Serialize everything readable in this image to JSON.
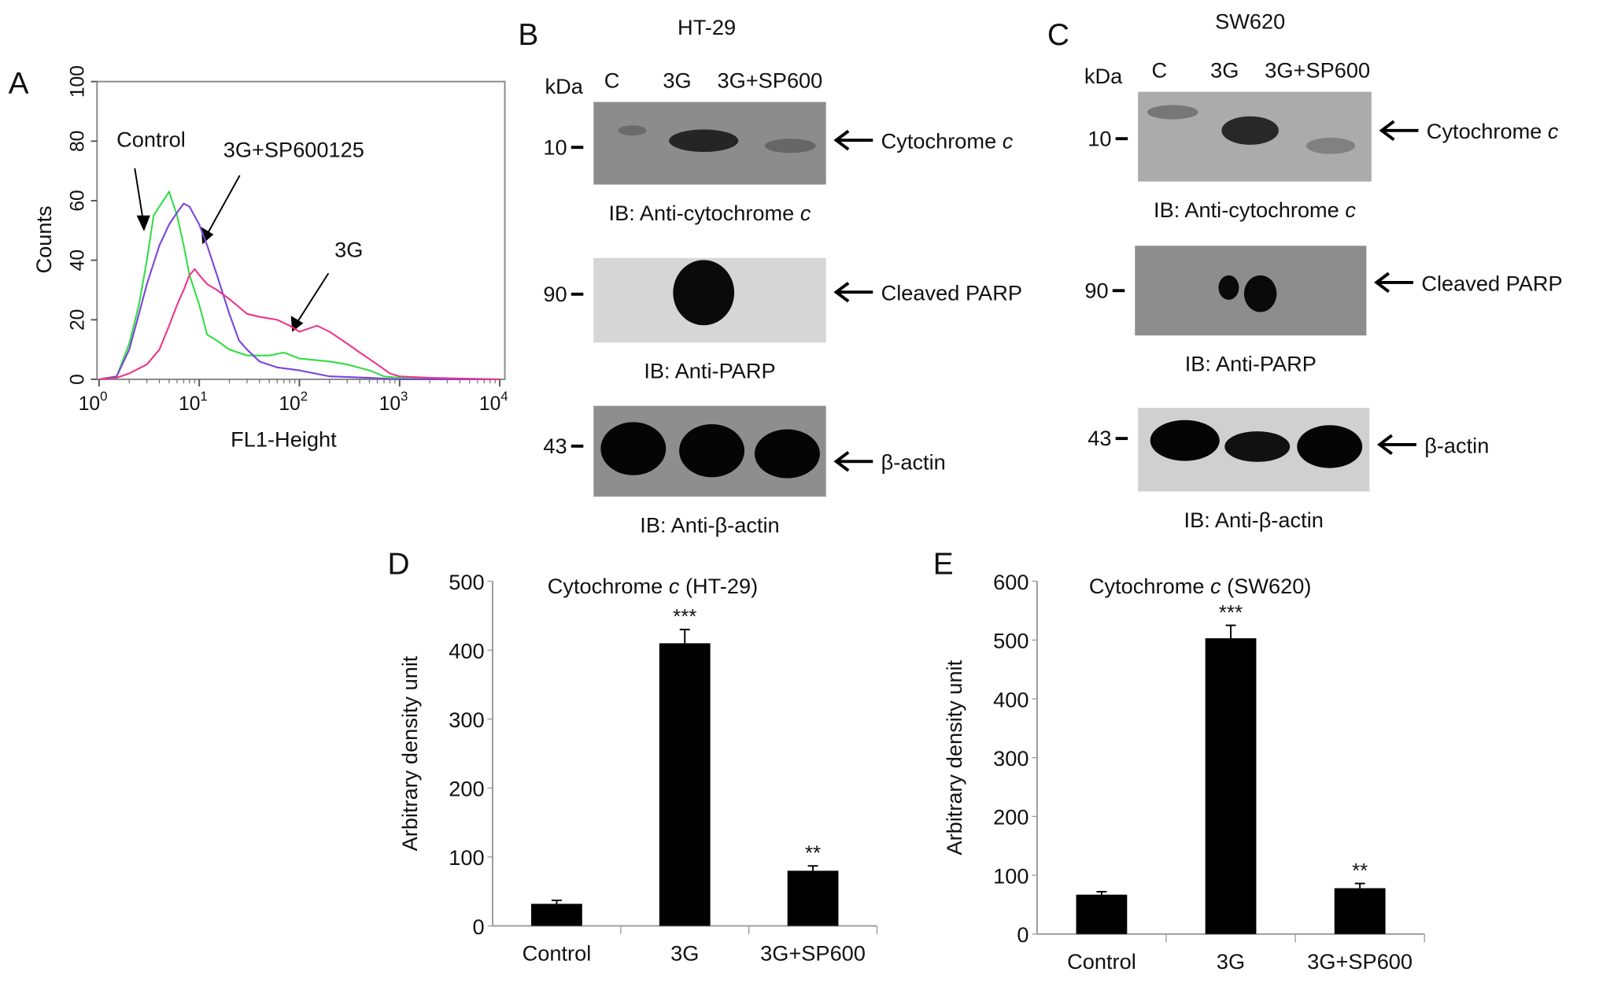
{
  "panels": {
    "a": "A",
    "b": "B",
    "c": "C",
    "d": "D",
    "e": "E"
  },
  "chart_data": [
    {
      "type": "line",
      "xlabel": "FL1-Height",
      "ylabel": "Counts",
      "xscale": "log",
      "xlim": [
        1,
        10000
      ],
      "ylim": [
        0,
        100
      ],
      "xticks": [
        "10^0",
        "10^1",
        "10^2",
        "10^3",
        "10^4"
      ],
      "yticks": [
        "0",
        "20",
        "40",
        "60",
        "80",
        "100"
      ],
      "series": [
        {
          "name": "Control",
          "color": "#33dd44",
          "points": [
            [
              1,
              0
            ],
            [
              1.5,
              1
            ],
            [
              2,
              12
            ],
            [
              2.5,
              25
            ],
            [
              3,
              40
            ],
            [
              3.5,
              55
            ],
            [
              4,
              58
            ],
            [
              5,
              63
            ],
            [
              6,
              55
            ],
            [
              7,
              45
            ],
            [
              8,
              35
            ],
            [
              10,
              25
            ],
            [
              12,
              15
            ],
            [
              15,
              13
            ],
            [
              20,
              10
            ],
            [
              30,
              8
            ],
            [
              50,
              8
            ],
            [
              70,
              9
            ],
            [
              100,
              7
            ],
            [
              200,
              6
            ],
            [
              300,
              5
            ],
            [
              500,
              3
            ],
            [
              700,
              1
            ],
            [
              1000,
              0.5
            ],
            [
              10000,
              0
            ]
          ]
        },
        {
          "name": "3G+SP600125",
          "color": "#7744dd",
          "points": [
            [
              1,
              0
            ],
            [
              1.5,
              1
            ],
            [
              2,
              10
            ],
            [
              2.5,
              22
            ],
            [
              3,
              32
            ],
            [
              4,
              45
            ],
            [
              5,
              52
            ],
            [
              6,
              56
            ],
            [
              7,
              59
            ],
            [
              8,
              58
            ],
            [
              10,
              52
            ],
            [
              12,
              45
            ],
            [
              15,
              35
            ],
            [
              20,
              22
            ],
            [
              25,
              13
            ],
            [
              30,
              10
            ],
            [
              40,
              6
            ],
            [
              60,
              4
            ],
            [
              100,
              3
            ],
            [
              200,
              1
            ],
            [
              500,
              0.5
            ],
            [
              1000,
              0
            ],
            [
              10000,
              0
            ]
          ]
        },
        {
          "name": "3G",
          "color": "#ee3388",
          "points": [
            [
              1,
              0
            ],
            [
              1.5,
              0.5
            ],
            [
              2,
              2
            ],
            [
              3,
              5
            ],
            [
              4,
              10
            ],
            [
              5,
              18
            ],
            [
              6,
              25
            ],
            [
              7,
              30
            ],
            [
              8,
              35
            ],
            [
              9,
              37
            ],
            [
              10,
              35
            ],
            [
              12,
              32
            ],
            [
              15,
              30
            ],
            [
              20,
              27
            ],
            [
              30,
              22
            ],
            [
              40,
              21
            ],
            [
              60,
              20
            ],
            [
              80,
              18
            ],
            [
              100,
              16
            ],
            [
              150,
              18
            ],
            [
              200,
              16
            ],
            [
              300,
              12
            ],
            [
              400,
              9
            ],
            [
              600,
              5
            ],
            [
              800,
              2
            ],
            [
              1000,
              1
            ],
            [
              2000,
              0.5
            ],
            [
              10000,
              0
            ]
          ]
        }
      ]
    },
    {
      "type": "bar",
      "title_main": "Cytochrome ",
      "title_italic": "c",
      "title_suffix": " (HT-29)",
      "ylabel": "Arbitrary density unit",
      "ylim": [
        0,
        500
      ],
      "yticks": [
        "0",
        "100",
        "200",
        "300",
        "400",
        "500"
      ],
      "categories": [
        "Control",
        "3G",
        "3G+SP600"
      ],
      "values": [
        32,
        410,
        80
      ],
      "errors": [
        5,
        20,
        7
      ],
      "significance": [
        "",
        "***",
        "**"
      ],
      "color": "#000000"
    },
    {
      "type": "bar",
      "title_main": "Cytochrome ",
      "title_italic": "c",
      "title_suffix": " (SW620)",
      "ylabel": "Arbitrary density unit",
      "ylim": [
        0,
        600
      ],
      "yticks": [
        "0",
        "100",
        "200",
        "300",
        "400",
        "500",
        "600"
      ],
      "categories": [
        "Control",
        "3G",
        "3G+SP600"
      ],
      "values": [
        67,
        503,
        78
      ],
      "errors": [
        5,
        22,
        8
      ],
      "significance": [
        "",
        "***",
        "**"
      ],
      "color": "#000000"
    }
  ],
  "blots": {
    "b": {
      "cell_line": "HT-29",
      "kda": "kDa",
      "lanes": [
        "C",
        "3G",
        "3G+SP600"
      ],
      "rows": [
        {
          "marker": "10",
          "target": "Cytochrome ",
          "target_italic": "c",
          "ib": "IB: Anti-cytochrome ",
          "ib_italic": "c"
        },
        {
          "marker": "90",
          "target": "Cleaved PARP",
          "target_italic": "",
          "ib": "IB: Anti-PARP",
          "ib_italic": ""
        },
        {
          "marker": "43",
          "target": "β-actin",
          "target_italic": "",
          "ib": "IB: Anti-β-actin",
          "ib_italic": ""
        }
      ]
    },
    "c": {
      "cell_line": "SW620",
      "kda": "kDa",
      "lanes": [
        "C",
        "3G",
        "3G+SP600"
      ],
      "rows": [
        {
          "marker": "10",
          "target": "Cytochrome ",
          "target_italic": "c",
          "ib": "IB: Anti-cytochrome ",
          "ib_italic": "c"
        },
        {
          "marker": "90",
          "target": "Cleaved PARP",
          "target_italic": "",
          "ib": "IB: Anti-PARP",
          "ib_italic": ""
        },
        {
          "marker": "43",
          "target": "β-actin",
          "target_italic": "",
          "ib": "IB: Anti-β-actin",
          "ib_italic": ""
        }
      ]
    }
  }
}
